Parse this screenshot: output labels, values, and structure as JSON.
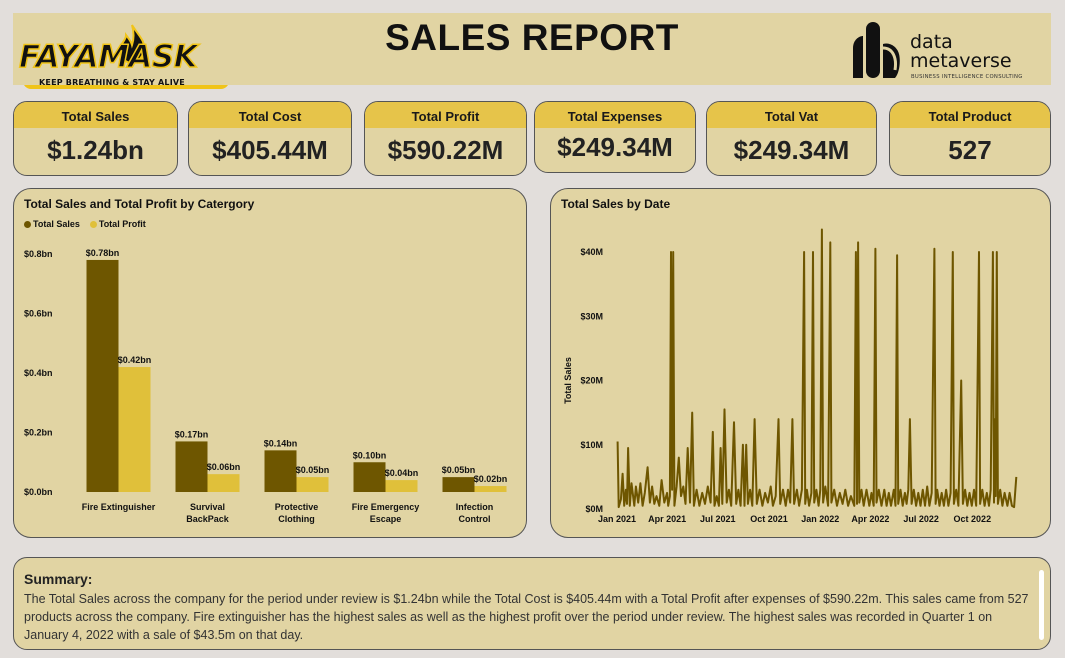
{
  "header": {
    "title": "SALES REPORT",
    "brand_name": "FAYAMASK",
    "brand_tagline": "KEEP BREATHING & STAY ALIVE",
    "partner_word1": "data",
    "partner_word2": "metaverse",
    "partner_subtitle": "BUSINESS INTELLIGENCE CONSULTING"
  },
  "kpis": [
    {
      "label": "Total Sales",
      "value": "$1.24bn"
    },
    {
      "label": "Total Cost",
      "value": "$405.44M"
    },
    {
      "label": "Total Profit",
      "value": "$590.22M"
    },
    {
      "label": "Total Expenses",
      "value": "$249.34M"
    },
    {
      "label": "Total Vat",
      "value": "$249.34M"
    },
    {
      "label": "Total Product",
      "value": "527"
    }
  ],
  "colors": {
    "panel_bg": "#e1d4a3",
    "kpi_header": "#e6c44a",
    "sales_series": "#6e5600",
    "profit_series": "#e0c03a",
    "line_series": "#6e5600"
  },
  "chart_data": [
    {
      "type": "bar",
      "title": "Total Sales and Total Profit by Catergory",
      "categories": [
        "Fire Extinguisher",
        "Survival BackPack",
        "Protective Clothing",
        "Fire Emergency Escape",
        "Infection Control"
      ],
      "category_lines": [
        [
          "Fire Extinguisher"
        ],
        [
          "Survival",
          "BackPack"
        ],
        [
          "Protective",
          "Clothing"
        ],
        [
          "Fire Emergency",
          "Escape"
        ],
        [
          "Infection",
          "Control"
        ]
      ],
      "series": [
        {
          "name": "Total Sales",
          "values": [
            0.78,
            0.17,
            0.14,
            0.1,
            0.05
          ],
          "labels": [
            "$0.78bn",
            "$0.17bn",
            "$0.14bn",
            "$0.10bn",
            "$0.05bn"
          ]
        },
        {
          "name": "Total Profit",
          "values": [
            0.42,
            0.06,
            0.05,
            0.04,
            0.02
          ],
          "labels": [
            "$0.42bn",
            "$0.06bn",
            "$0.05bn",
            "$0.04bn",
            "$0.02bn"
          ]
        }
      ],
      "ylim": [
        0,
        0.8
      ],
      "yticks": [
        0,
        0.2,
        0.4,
        0.6,
        0.8
      ],
      "ytick_labels": [
        "$0.0bn",
        "$0.2bn",
        "$0.4bn",
        "$0.6bn",
        "$0.8bn"
      ],
      "xlabel": "",
      "ylabel": "",
      "legend": "top-left",
      "grid": false
    },
    {
      "type": "line",
      "title": "Total Sales by Date",
      "ylabel": "Total Sales",
      "xlabel": "",
      "ylim": [
        0,
        40
      ],
      "yticks": [
        0,
        10,
        20,
        30,
        40
      ],
      "ytick_labels": [
        "$0M",
        "$10M",
        "$20M",
        "$30M",
        "$40M"
      ],
      "xlim": [
        "2021-01-01",
        "2022-12-31"
      ],
      "xticks": [
        "2021-01-01",
        "2021-04-01",
        "2021-07-01",
        "2021-10-01",
        "2022-01-01",
        "2022-04-01",
        "2022-07-01",
        "2022-10-01"
      ],
      "xtick_labels": [
        "Jan 2021",
        "Apr 2021",
        "Jul 2021",
        "Oct 2021",
        "Jan 2022",
        "Apr 2022",
        "Jul 2022",
        "Oct 2022"
      ],
      "grid": false,
      "points": [
        [
          "2021-01-02",
          10.5
        ],
        [
          "2021-01-04",
          0.3
        ],
        [
          "2021-01-08",
          1.5
        ],
        [
          "2021-01-11",
          5.5
        ],
        [
          "2021-01-14",
          0.5
        ],
        [
          "2021-01-17",
          3.0
        ],
        [
          "2021-01-19",
          0.8
        ],
        [
          "2021-01-21",
          9.5
        ],
        [
          "2021-01-24",
          0.5
        ],
        [
          "2021-01-27",
          4.0
        ],
        [
          "2021-02-01",
          0.5
        ],
        [
          "2021-02-04",
          3.5
        ],
        [
          "2021-02-08",
          1.0
        ],
        [
          "2021-02-12",
          4.0
        ],
        [
          "2021-02-16",
          0.5
        ],
        [
          "2021-02-20",
          2.5
        ],
        [
          "2021-02-25",
          6.5
        ],
        [
          "2021-03-01",
          1.0
        ],
        [
          "2021-03-05",
          3.5
        ],
        [
          "2021-03-09",
          0.8
        ],
        [
          "2021-03-13",
          2.0
        ],
        [
          "2021-03-18",
          0.5
        ],
        [
          "2021-03-22",
          4.5
        ],
        [
          "2021-03-27",
          1.0
        ],
        [
          "2021-04-01",
          2.5
        ],
        [
          "2021-04-03",
          0.5
        ],
        [
          "2021-04-06",
          2.0
        ],
        [
          "2021-04-08",
          40.0
        ],
        [
          "2021-04-10",
          3.0
        ],
        [
          "2021-04-12",
          40.0
        ],
        [
          "2021-04-14",
          0.5
        ],
        [
          "2021-04-18",
          3.5
        ],
        [
          "2021-04-22",
          8.0
        ],
        [
          "2021-04-26",
          2.0
        ],
        [
          "2021-04-30",
          3.5
        ],
        [
          "2021-05-04",
          0.8
        ],
        [
          "2021-05-08",
          9.5
        ],
        [
          "2021-05-12",
          1.0
        ],
        [
          "2021-05-16",
          15.0
        ],
        [
          "2021-05-19",
          0.5
        ],
        [
          "2021-05-24",
          3.0
        ],
        [
          "2021-05-29",
          0.5
        ],
        [
          "2021-06-03",
          2.5
        ],
        [
          "2021-06-08",
          0.8
        ],
        [
          "2021-06-13",
          3.5
        ],
        [
          "2021-06-18",
          1.0
        ],
        [
          "2021-06-22",
          12.0
        ],
        [
          "2021-06-25",
          0.5
        ],
        [
          "2021-06-29",
          2.0
        ],
        [
          "2021-07-03",
          0.5
        ],
        [
          "2021-07-06",
          9.5
        ],
        [
          "2021-07-09",
          0.8
        ],
        [
          "2021-07-13",
          15.5
        ],
        [
          "2021-07-17",
          1.0
        ],
        [
          "2021-07-21",
          3.0
        ],
        [
          "2021-07-25",
          0.5
        ],
        [
          "2021-07-30",
          13.5
        ],
        [
          "2021-08-03",
          0.8
        ],
        [
          "2021-08-07",
          3.0
        ],
        [
          "2021-08-11",
          0.5
        ],
        [
          "2021-08-15",
          10.0
        ],
        [
          "2021-08-18",
          0.5
        ],
        [
          "2021-08-21",
          10.0
        ],
        [
          "2021-08-24",
          0.8
        ],
        [
          "2021-08-28",
          3.0
        ],
        [
          "2021-09-01",
          0.5
        ],
        [
          "2021-09-05",
          14.0
        ],
        [
          "2021-09-09",
          0.8
        ],
        [
          "2021-09-14",
          3.0
        ],
        [
          "2021-09-19",
          0.5
        ],
        [
          "2021-09-24",
          2.5
        ],
        [
          "2021-09-29",
          1.0
        ],
        [
          "2021-10-04",
          3.5
        ],
        [
          "2021-10-08",
          0.5
        ],
        [
          "2021-10-13",
          2.0
        ],
        [
          "2021-10-18",
          14.0
        ],
        [
          "2021-10-21",
          0.8
        ],
        [
          "2021-10-26",
          3.0
        ],
        [
          "2021-10-31",
          0.5
        ],
        [
          "2021-11-04",
          3.0
        ],
        [
          "2021-11-08",
          1.0
        ],
        [
          "2021-11-12",
          14.0
        ],
        [
          "2021-11-15",
          0.8
        ],
        [
          "2021-11-20",
          3.0
        ],
        [
          "2021-11-24",
          0.5
        ],
        [
          "2021-11-29",
          3.0
        ],
        [
          "2021-12-03",
          40.0
        ],
        [
          "2021-12-05",
          0.8
        ],
        [
          "2021-12-08",
          3.0
        ],
        [
          "2021-12-12",
          0.5
        ],
        [
          "2021-12-16",
          2.5
        ],
        [
          "2021-12-19",
          40.0
        ],
        [
          "2021-12-21",
          1.0
        ],
        [
          "2021-12-25",
          3.0
        ],
        [
          "2021-12-29",
          0.5
        ],
        [
          "2022-01-01",
          3.0
        ],
        [
          "2022-01-04",
          43.5
        ],
        [
          "2022-01-06",
          1.0
        ],
        [
          "2022-01-10",
          3.5
        ],
        [
          "2022-01-15",
          0.5
        ],
        [
          "2022-01-19",
          41.5
        ],
        [
          "2022-01-21",
          1.0
        ],
        [
          "2022-01-26",
          3.0
        ],
        [
          "2022-01-31",
          0.5
        ],
        [
          "2022-02-05",
          2.5
        ],
        [
          "2022-02-10",
          0.8
        ],
        [
          "2022-02-15",
          3.0
        ],
        [
          "2022-02-20",
          0.5
        ],
        [
          "2022-02-25",
          2.0
        ],
        [
          "2022-03-03",
          0.5
        ],
        [
          "2022-03-06",
          40.0
        ],
        [
          "2022-03-08",
          0.8
        ],
        [
          "2022-03-10",
          41.5
        ],
        [
          "2022-03-12",
          1.0
        ],
        [
          "2022-03-16",
          3.0
        ],
        [
          "2022-03-20",
          0.5
        ],
        [
          "2022-03-25",
          3.0
        ],
        [
          "2022-03-30",
          0.5
        ],
        [
          "2022-04-03",
          2.5
        ],
        [
          "2022-04-07",
          0.5
        ],
        [
          "2022-04-10",
          40.5
        ],
        [
          "2022-04-12",
          1.0
        ],
        [
          "2022-04-16",
          3.0
        ],
        [
          "2022-04-21",
          0.5
        ],
        [
          "2022-04-26",
          3.0
        ],
        [
          "2022-04-30",
          0.5
        ],
        [
          "2022-05-04",
          2.5
        ],
        [
          "2022-05-08",
          0.5
        ],
        [
          "2022-05-13",
          3.0
        ],
        [
          "2022-05-16",
          0.5
        ],
        [
          "2022-05-19",
          39.5
        ],
        [
          "2022-05-21",
          0.8
        ],
        [
          "2022-05-25",
          3.0
        ],
        [
          "2022-05-29",
          0.5
        ],
        [
          "2022-06-02",
          2.5
        ],
        [
          "2022-06-05",
          0.8
        ],
        [
          "2022-06-08",
          3.0
        ],
        [
          "2022-06-11",
          14.0
        ],
        [
          "2022-06-14",
          0.8
        ],
        [
          "2022-06-18",
          3.0
        ],
        [
          "2022-06-22",
          0.5
        ],
        [
          "2022-06-26",
          2.5
        ],
        [
          "2022-06-30",
          0.5
        ],
        [
          "2022-07-04",
          3.0
        ],
        [
          "2022-07-08",
          0.5
        ],
        [
          "2022-07-12",
          3.5
        ],
        [
          "2022-07-16",
          0.5
        ],
        [
          "2022-07-20",
          2.5
        ],
        [
          "2022-07-25",
          40.5
        ],
        [
          "2022-07-27",
          0.8
        ],
        [
          "2022-07-30",
          3.0
        ],
        [
          "2022-08-03",
          0.5
        ],
        [
          "2022-08-07",
          2.5
        ],
        [
          "2022-08-11",
          0.5
        ],
        [
          "2022-08-15",
          3.0
        ],
        [
          "2022-08-19",
          0.5
        ],
        [
          "2022-08-23",
          2.5
        ],
        [
          "2022-08-27",
          40.0
        ],
        [
          "2022-08-29",
          0.8
        ],
        [
          "2022-09-02",
          3.0
        ],
        [
          "2022-09-06",
          0.5
        ],
        [
          "2022-09-11",
          20.0
        ],
        [
          "2022-09-14",
          0.8
        ],
        [
          "2022-09-18",
          3.0
        ],
        [
          "2022-09-22",
          0.5
        ],
        [
          "2022-09-26",
          2.5
        ],
        [
          "2022-09-30",
          0.5
        ],
        [
          "2022-10-04",
          3.0
        ],
        [
          "2022-10-08",
          0.5
        ],
        [
          "2022-10-13",
          40.0
        ],
        [
          "2022-10-15",
          0.8
        ],
        [
          "2022-10-19",
          3.0
        ],
        [
          "2022-10-23",
          0.5
        ],
        [
          "2022-10-27",
          2.5
        ],
        [
          "2022-10-31",
          0.5
        ],
        [
          "2022-11-03",
          3.0
        ],
        [
          "2022-11-07",
          40.0
        ],
        [
          "2022-11-09",
          1.0
        ],
        [
          "2022-11-11",
          14.0
        ],
        [
          "2022-11-12",
          2.0
        ],
        [
          "2022-11-14",
          40.0
        ],
        [
          "2022-11-16",
          0.8
        ],
        [
          "2022-11-20",
          3.0
        ],
        [
          "2022-11-24",
          0.5
        ],
        [
          "2022-11-28",
          2.5
        ],
        [
          "2022-12-03",
          0.5
        ],
        [
          "2022-12-07",
          2.5
        ],
        [
          "2022-12-11",
          0.5
        ],
        [
          "2022-12-15",
          0.3
        ],
        [
          "2022-12-19",
          5.0
        ]
      ]
    }
  ],
  "summary": {
    "title": "Summary:",
    "text": "The Total Sales across the company for the period under review is $1.24bn while the Total Cost is $405.44m with a Total Profit after expenses of $590.22m. This sales came from 527 products across the company. Fire extinguisher has the highest sales as well as the highest profit over the period under review. The highest sales was recorded in Quarter 1 on January 4, 2022 with a sale of $43.5m on that day."
  }
}
